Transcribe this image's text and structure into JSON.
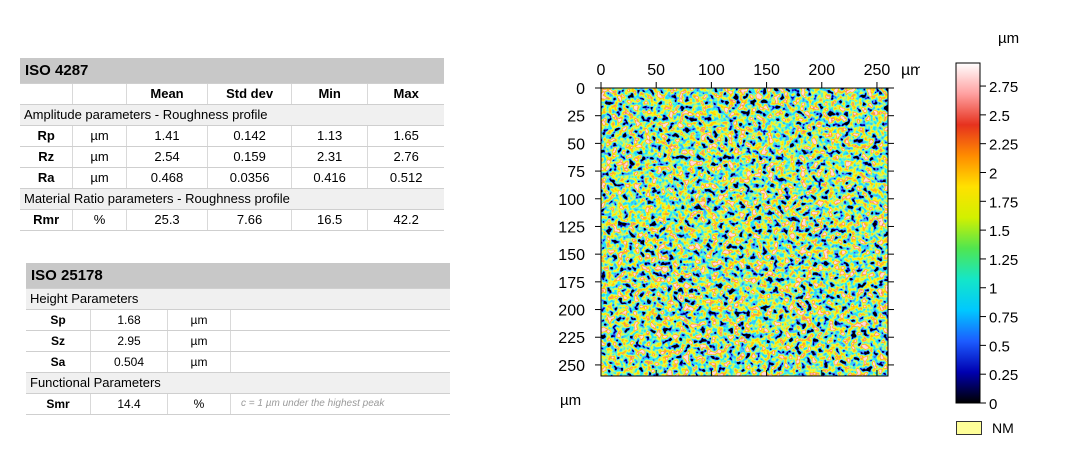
{
  "iso4287": {
    "title": "ISO 4287",
    "headers": [
      "",
      "",
      "Mean",
      "Std dev",
      "Min",
      "Max"
    ],
    "sections": [
      {
        "label": "Amplitude parameters - Roughness profile",
        "rows": [
          {
            "param": "Rp",
            "unit": "µm",
            "mean": "1.41",
            "std": "0.142",
            "min": "1.13",
            "max": "1.65"
          },
          {
            "param": "Rz",
            "unit": "µm",
            "mean": "2.54",
            "std": "0.159",
            "min": "2.31",
            "max": "2.76"
          },
          {
            "param": "Ra",
            "unit": "µm",
            "mean": "0.468",
            "std": "0.0356",
            "min": "0.416",
            "max": "0.512"
          }
        ]
      },
      {
        "label": "Material Ratio parameters - Roughness profile",
        "rows": [
          {
            "param": "Rmr",
            "unit": "%",
            "mean": "25.3",
            "std": "7.66",
            "min": "16.5",
            "max": "42.2"
          }
        ]
      }
    ]
  },
  "iso25178": {
    "title": "ISO 25178",
    "sections": [
      {
        "label": "Height Parameters",
        "rows": [
          {
            "param": "Sp",
            "value": "1.68",
            "unit": "µm",
            "note": ""
          },
          {
            "param": "Sz",
            "value": "2.95",
            "unit": "µm",
            "note": ""
          },
          {
            "param": "Sa",
            "value": "0.504",
            "unit": "µm",
            "note": ""
          }
        ]
      },
      {
        "label": "Functional Parameters",
        "rows": [
          {
            "param": "Smr",
            "value": "14.4",
            "unit": "%",
            "note": "c = 1 µm under the highest peak"
          }
        ]
      }
    ]
  },
  "map": {
    "x_ticks": [
      "0",
      "50",
      "100",
      "150",
      "200",
      "250"
    ],
    "x_unit": "µm",
    "y_ticks": [
      "0",
      "25",
      "50",
      "75",
      "100",
      "125",
      "150",
      "175",
      "200",
      "225",
      "250"
    ],
    "y_unit": "µm",
    "x_range": [
      0,
      260
    ],
    "y_range": [
      0,
      260
    ]
  },
  "colorbar": {
    "unit": "µm",
    "range": [
      0,
      2.95
    ],
    "ticks": [
      "2.75",
      "2.5",
      "2.25",
      "2",
      "1.75",
      "1.5",
      "1.25",
      "1",
      "0.75",
      "0.5",
      "0.25",
      "0"
    ],
    "tick_values": [
      2.75,
      2.5,
      2.25,
      2,
      1.75,
      1.5,
      1.25,
      1,
      0.75,
      0.5,
      0.25,
      0
    ],
    "colors": [
      "#000000",
      "#0000b0",
      "#1c5cff",
      "#00c8ff",
      "#14e6c8",
      "#50e650",
      "#d2f000",
      "#ffe100",
      "#ff8c00",
      "#e6321e",
      "#ffa0a0",
      "#ffffff"
    ],
    "legend_label": "NM",
    "legend_color": "#ffff99"
  }
}
